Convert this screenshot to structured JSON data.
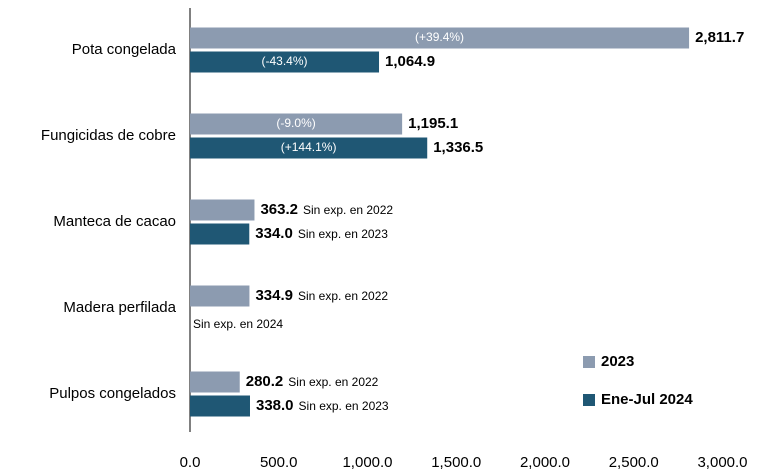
{
  "chart_data": {
    "type": "hbar",
    "categories": [
      "Pota congelada",
      "Fungicidas de cobre",
      "Manteca de cacao",
      "Madera perfilada",
      "Pulpos congelados"
    ],
    "series": [
      {
        "name": "2023",
        "color": "#8c9bb0",
        "values": [
          2811.7,
          1195.1,
          363.2,
          334.9,
          280.2
        ],
        "value_labels": [
          "2,811.7",
          "1,195.1",
          "363.2",
          "334.9",
          "280.2"
        ],
        "inner_labels": [
          "(+39.4%)",
          "(-9.0%)",
          null,
          null,
          null
        ],
        "notes": [
          null,
          null,
          "Sin exp. en 2022",
          "Sin exp. en 2022",
          "Sin exp. en 2022"
        ]
      },
      {
        "name": "Ene-Jul 2024",
        "color": "#1f5774",
        "values": [
          1064.9,
          1336.5,
          334.0,
          null,
          338.0
        ],
        "value_labels": [
          "1,064.9",
          "1,336.5",
          "334.0",
          null,
          "338.0"
        ],
        "inner_labels": [
          "(-43.4%)",
          "(+144.1%)",
          null,
          null,
          null
        ],
        "notes": [
          null,
          null,
          "Sin exp. en 2023",
          "Sin exp. en 2024",
          "Sin exp. en 2023"
        ]
      }
    ],
    "xlim": [
      0,
      3000
    ],
    "xticks": [
      {
        "value": 0,
        "label": "0.0"
      },
      {
        "value": 500,
        "label": "500.0"
      },
      {
        "value": 1000,
        "label": "1,000.0"
      },
      {
        "value": 1500,
        "label": "1,500.0"
      },
      {
        "value": 2000,
        "label": "2,000.0"
      },
      {
        "value": 2500,
        "label": "2,500.0"
      },
      {
        "value": 3000,
        "label": "3,000.0"
      }
    ],
    "legend": "lower right"
  }
}
